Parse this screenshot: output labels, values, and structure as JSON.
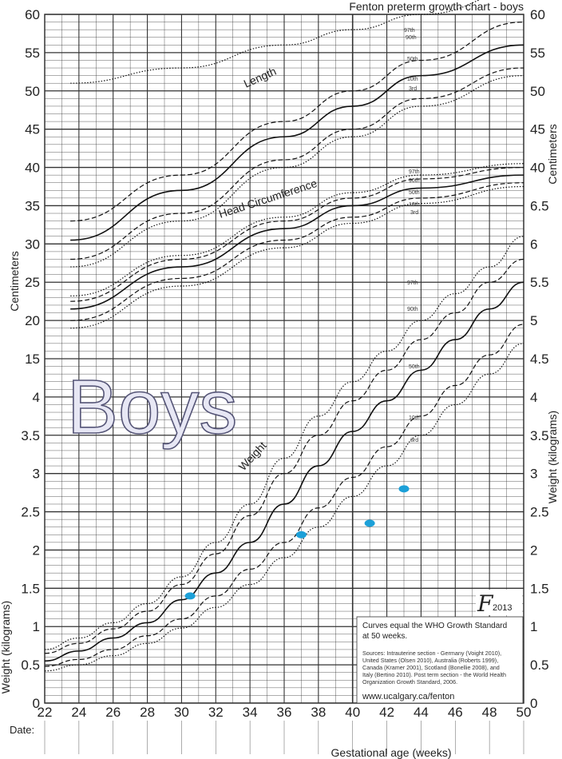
{
  "chart_data": {
    "type": "line",
    "title": "Fenton preterm growth chart - boys",
    "big_label": "Boys",
    "xlabel": "Gestational age (weeks)",
    "date_label": "Date:",
    "x_ticks": [
      22,
      24,
      26,
      28,
      30,
      32,
      34,
      36,
      38,
      40,
      42,
      44,
      46,
      48,
      50
    ],
    "left_ticks": [
      {
        "v": 0,
        "t": "0"
      },
      {
        "v": 0.5,
        "t": "0.5"
      },
      {
        "v": 1,
        "t": "1"
      },
      {
        "v": 1.5,
        "t": "1.5"
      },
      {
        "v": 2,
        "t": "2"
      },
      {
        "v": 2.5,
        "t": "2.5"
      },
      {
        "v": 3,
        "t": "3"
      },
      {
        "v": 3.5,
        "t": "3.5"
      },
      {
        "v": 4,
        "t": "4"
      },
      {
        "v": 4.5,
        "t": "15"
      },
      {
        "v": 5,
        "t": "20"
      },
      {
        "v": 5.5,
        "t": "25"
      },
      {
        "v": 6,
        "t": "30"
      },
      {
        "v": 6.5,
        "t": "35"
      },
      {
        "v": 7,
        "t": "40"
      },
      {
        "v": 7.5,
        "t": "45"
      },
      {
        "v": 8,
        "t": "50"
      },
      {
        "v": 8.5,
        "t": "55"
      },
      {
        "v": 9,
        "t": "60"
      }
    ],
    "right_ticks": [
      {
        "v": 0,
        "t": "0"
      },
      {
        "v": 0.5,
        "t": "0.5"
      },
      {
        "v": 1,
        "t": "1"
      },
      {
        "v": 1.5,
        "t": "1.5"
      },
      {
        "v": 2,
        "t": "2"
      },
      {
        "v": 2.5,
        "t": "2.5"
      },
      {
        "v": 3,
        "t": "3"
      },
      {
        "v": 3.5,
        "t": "3.5"
      },
      {
        "v": 4,
        "t": "4"
      },
      {
        "v": 4.5,
        "t": "4.5"
      },
      {
        "v": 5,
        "t": "5"
      },
      {
        "v": 5.5,
        "t": "5.5"
      },
      {
        "v": 6,
        "t": "6"
      },
      {
        "v": 6.5,
        "t": "6.5"
      },
      {
        "v": 7,
        "t": "40"
      },
      {
        "v": 7.5,
        "t": "45"
      },
      {
        "v": 8,
        "t": "50"
      },
      {
        "v": 8.5,
        "t": "55"
      },
      {
        "v": 9,
        "t": "60"
      }
    ],
    "left_axis_titles": [
      "Weight (kilograms)",
      "Centimeters"
    ],
    "right_axis_titles": [
      "Weight (kilograms)",
      "Centimeters"
    ],
    "xlim": [
      22,
      50
    ],
    "ylim": [
      0,
      9
    ],
    "percentile_labels": [
      "97th",
      "90th",
      "50th",
      "10th",
      "3rd"
    ],
    "curve_labels": [
      "Length",
      "Head Circumference",
      "Weight"
    ],
    "series": [
      {
        "name": "Length",
        "percentile": "97th",
        "style": "dotted",
        "x": [
          23.5,
          30,
          36,
          40,
          44,
          50
        ],
        "y": [
          51,
          53,
          56,
          58,
          60,
          63
        ]
      },
      {
        "name": "Length",
        "percentile": "90th",
        "style": "dashed",
        "x": [
          23.5,
          30,
          36,
          40,
          44,
          50
        ],
        "y": [
          33,
          39,
          46,
          50,
          54,
          59
        ]
      },
      {
        "name": "Length",
        "percentile": "50th",
        "style": "solid",
        "x": [
          23.5,
          30,
          36,
          40,
          44,
          50
        ],
        "y": [
          30.5,
          37,
          44,
          48,
          52,
          56
        ]
      },
      {
        "name": "Length",
        "percentile": "10th",
        "style": "dashed",
        "x": [
          23.5,
          30,
          36,
          40,
          44,
          50
        ],
        "y": [
          28,
          34,
          41,
          45,
          49,
          53
        ]
      },
      {
        "name": "Length",
        "percentile": "3rd",
        "style": "dotted",
        "x": [
          23.5,
          30,
          36,
          40,
          44,
          50
        ],
        "y": [
          27,
          33,
          40,
          44,
          48,
          52
        ]
      },
      {
        "name": "Head Circumference",
        "percentile": "97th",
        "style": "dotted",
        "x": [
          23.5,
          30,
          36,
          40,
          44,
          50
        ],
        "y": [
          23.2,
          28.5,
          33.5,
          36.7,
          39,
          40.5
        ]
      },
      {
        "name": "Head Circumference",
        "percentile": "90th",
        "style": "dashed",
        "x": [
          23.5,
          30,
          36,
          40,
          44,
          50
        ],
        "y": [
          22.5,
          28,
          33,
          36,
          38.5,
          40
        ]
      },
      {
        "name": "Head Circumference",
        "percentile": "50th",
        "style": "solid",
        "x": [
          23.5,
          30,
          36,
          40,
          44,
          50
        ],
        "y": [
          21.5,
          27,
          32,
          35,
          37.3,
          39
        ]
      },
      {
        "name": "Head Circumference",
        "percentile": "10th",
        "style": "dashed",
        "x": [
          23.5,
          30,
          36,
          40,
          44,
          50
        ],
        "y": [
          20,
          25.5,
          30.5,
          33.5,
          36,
          38
        ]
      },
      {
        "name": "Head Circumference",
        "percentile": "3rd",
        "style": "dotted",
        "x": [
          23.5,
          30,
          36,
          40,
          44,
          50
        ],
        "y": [
          19,
          24.5,
          29.5,
          32.7,
          35.3,
          37.5
        ]
      },
      {
        "name": "Weight",
        "percentile": "97th",
        "style": "dotted",
        "x": [
          22,
          24,
          26,
          28,
          30,
          32,
          34,
          36,
          38,
          40,
          42,
          44,
          46,
          48,
          50
        ],
        "y": [
          0.7,
          0.85,
          1.05,
          1.3,
          1.65,
          2.1,
          2.6,
          3.2,
          3.75,
          4.2,
          4.6,
          5.0,
          5.35,
          5.7,
          6.1
        ]
      },
      {
        "name": "Weight",
        "percentile": "90th",
        "style": "dashed",
        "x": [
          22,
          24,
          26,
          28,
          30,
          32,
          34,
          36,
          38,
          40,
          42,
          44,
          46,
          48,
          50
        ],
        "y": [
          0.65,
          0.78,
          0.97,
          1.2,
          1.55,
          1.95,
          2.45,
          3.0,
          3.5,
          3.95,
          4.35,
          4.75,
          5.1,
          5.5,
          5.8
        ]
      },
      {
        "name": "Weight",
        "percentile": "50th",
        "style": "solid",
        "x": [
          22,
          24,
          26,
          28,
          30,
          32,
          34,
          36,
          38,
          40,
          42,
          44,
          46,
          48,
          50
        ],
        "y": [
          0.55,
          0.68,
          0.85,
          1.05,
          1.35,
          1.7,
          2.1,
          2.6,
          3.1,
          3.55,
          3.95,
          4.35,
          4.75,
          5.15,
          5.5
        ]
      },
      {
        "name": "Weight",
        "percentile": "10th",
        "style": "dashed",
        "x": [
          22,
          24,
          26,
          28,
          30,
          32,
          34,
          36,
          38,
          40,
          42,
          44,
          46,
          48,
          50
        ],
        "y": [
          0.48,
          0.57,
          0.7,
          0.88,
          1.1,
          1.4,
          1.75,
          2.1,
          2.55,
          2.95,
          3.35,
          3.75,
          4.15,
          4.55,
          4.95
        ]
      },
      {
        "name": "Weight",
        "percentile": "3rd",
        "style": "dotted",
        "x": [
          22,
          24,
          26,
          28,
          30,
          32,
          34,
          36,
          38,
          40,
          42,
          44,
          46,
          48,
          50
        ],
        "y": [
          0.42,
          0.5,
          0.62,
          0.78,
          0.98,
          1.25,
          1.55,
          1.9,
          2.3,
          2.7,
          3.1,
          3.5,
          3.9,
          4.3,
          4.7
        ]
      }
    ],
    "points": [
      {
        "x": 30.5,
        "y": 1.4
      },
      {
        "x": 37,
        "y": 2.2
      },
      {
        "x": 41,
        "y": 2.35
      },
      {
        "x": 43,
        "y": 2.8
      }
    ],
    "info_box": {
      "line1": "Curves equal the WHO Growth Standard",
      "line2": "at 50 weeks.",
      "sources": [
        "Sources: Intrauterine section - Germany (Voight 2010),",
        "United States (Olsen 2010), Australia (Roberts 1999),",
        "Canada (Kramer 2001), Scotland (Bonellie 2008), and",
        "Italy (Bertino 2010). Post term section - the World Health",
        "Organization Growth Standard, 2006."
      ],
      "url": "www.ucalgary.ca/fenton"
    },
    "logo_text": "F",
    "logo_year": "2013",
    "colors": {
      "grid": "#444444",
      "point": "#1ca0d8",
      "boys_fill": "#e7e7f4",
      "boys_stroke": "#555577"
    }
  }
}
